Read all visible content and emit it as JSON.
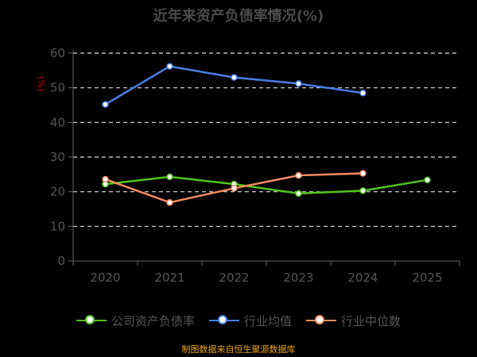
{
  "chart_data": {
    "type": "line",
    "title": "近年来资产负债率情况(%)",
    "ylabel": "(%)",
    "x": [
      "2020",
      "2021",
      "2022",
      "2023",
      "2024",
      "2025"
    ],
    "ylim": [
      0,
      60
    ],
    "yticks": [
      0,
      10,
      20,
      30,
      40,
      50,
      60
    ],
    "grid": true,
    "legend_position": "bottom",
    "series": [
      {
        "name": "公司资产负债率",
        "color": "#52c41a",
        "values": [
          22.2,
          24.3,
          22.2,
          19.5,
          20.3,
          23.4
        ]
      },
      {
        "name": "行业均值",
        "color": "#4a7ee8",
        "values": [
          45.2,
          56.2,
          53.0,
          51.2,
          48.5,
          null
        ]
      },
      {
        "name": "行业中位数",
        "color": "#f58a60",
        "values": [
          23.6,
          16.9,
          21.0,
          24.7,
          25.3,
          null
        ]
      }
    ]
  },
  "footer": "制图数据来自恒生聚源数据库"
}
